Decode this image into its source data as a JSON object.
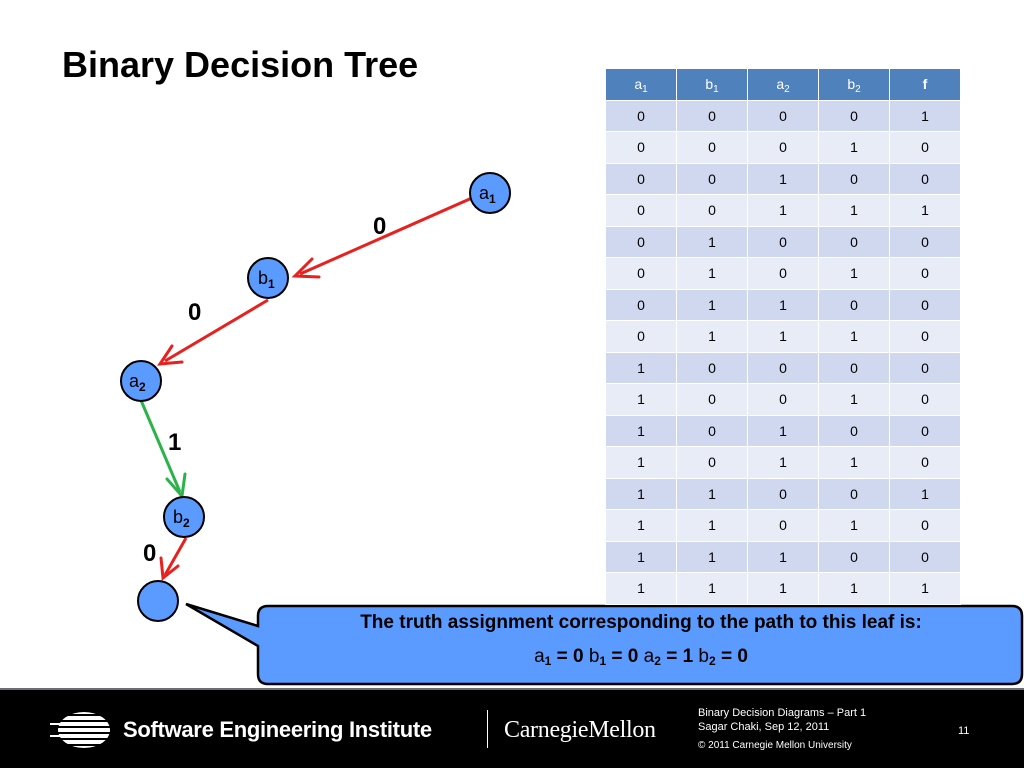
{
  "slide": {
    "title": "Binary Decision Tree"
  },
  "tree": {
    "nodes": [
      {
        "var": "a",
        "index": "1"
      },
      {
        "var": "b",
        "index": "1"
      },
      {
        "var": "a",
        "index": "2"
      },
      {
        "var": "b",
        "index": "2"
      }
    ],
    "edges": [
      {
        "label": "0",
        "color": "#e8211f"
      },
      {
        "label": "0",
        "color": "#e8211f"
      },
      {
        "label": "1",
        "color": "#2bb34a"
      },
      {
        "label": "0",
        "color": "#e8211f"
      }
    ],
    "node_fill": "#5b9bff"
  },
  "truth_table": {
    "headers": [
      {
        "var": "a",
        "index": "1"
      },
      {
        "var": "b",
        "index": "1"
      },
      {
        "var": "a",
        "index": "2"
      },
      {
        "var": "b",
        "index": "2"
      },
      {
        "var": "f",
        "index": ""
      }
    ],
    "rows": [
      [
        "0",
        "0",
        "0",
        "0",
        "1"
      ],
      [
        "0",
        "0",
        "0",
        "1",
        "0"
      ],
      [
        "0",
        "0",
        "1",
        "0",
        "0"
      ],
      [
        "0",
        "0",
        "1",
        "1",
        "1"
      ],
      [
        "0",
        "1",
        "0",
        "0",
        "0"
      ],
      [
        "0",
        "1",
        "0",
        "1",
        "0"
      ],
      [
        "0",
        "1",
        "1",
        "0",
        "0"
      ],
      [
        "0",
        "1",
        "1",
        "1",
        "0"
      ],
      [
        "1",
        "0",
        "0",
        "0",
        "0"
      ],
      [
        "1",
        "0",
        "0",
        "1",
        "0"
      ],
      [
        "1",
        "0",
        "1",
        "0",
        "0"
      ],
      [
        "1",
        "0",
        "1",
        "1",
        "0"
      ],
      [
        "1",
        "1",
        "0",
        "0",
        "1"
      ],
      [
        "1",
        "1",
        "0",
        "1",
        "0"
      ],
      [
        "1",
        "1",
        "1",
        "0",
        "0"
      ],
      [
        "1",
        "1",
        "1",
        "1",
        "1"
      ]
    ],
    "header_color": "#4f81bd"
  },
  "callout": {
    "heading": "The truth assignment corresponding to the path to this leaf is:",
    "assignment": [
      {
        "var": "a",
        "index": "1",
        "value": "0"
      },
      {
        "var": "b",
        "index": "1",
        "value": "0"
      },
      {
        "var": "a",
        "index": "2",
        "value": "1"
      },
      {
        "var": "b",
        "index": "2",
        "value": "0"
      }
    ],
    "fill": "#5b9bff"
  },
  "footer": {
    "org": "Software Engineering Institute",
    "university": "CarnegieMellon",
    "deck_title": "Binary Decision Diagrams – Part 1",
    "author_date": "Sagar Chaki, Sep 12, 2011",
    "copyright": "© 2011 Carnegie Mellon University",
    "page": "11"
  }
}
